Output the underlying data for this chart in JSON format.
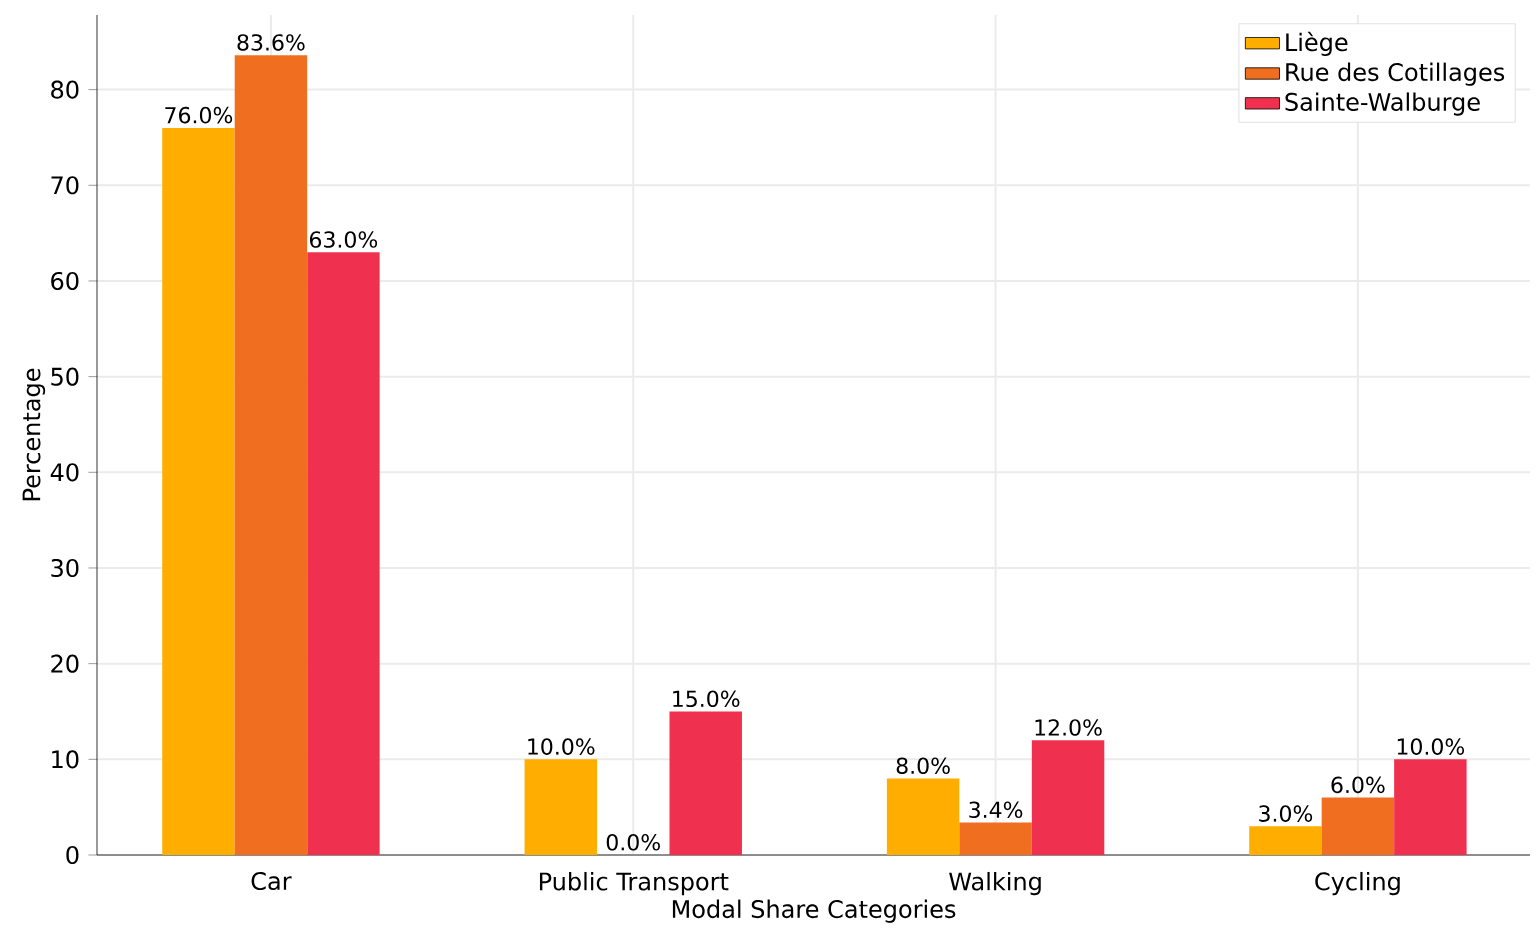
{
  "chart_data": {
    "type": "bar",
    "xlabel": "Modal Share Categories",
    "ylabel": "Percentage",
    "categories": [
      "Car",
      "Public Transport",
      "Walking",
      "Cycling"
    ],
    "series": [
      {
        "name": "Liège",
        "color": "#ffae00",
        "values": [
          76.0,
          10.0,
          8.0,
          3.0
        ],
        "value_labels": [
          "76.0%",
          "10.0%",
          "8.0%",
          "3.0%"
        ]
      },
      {
        "name": "Rue des Cotillages",
        "color": "#f06e20",
        "values": [
          83.6,
          0.0,
          3.4,
          6.0
        ],
        "value_labels": [
          "83.6%",
          "0.0%",
          "3.4%",
          "6.0%"
        ]
      },
      {
        "name": "Sainte-Walburge",
        "color": "#f0304f",
        "values": [
          63.0,
          15.0,
          12.0,
          10.0
        ],
        "value_labels": [
          "63.0%",
          "15.0%",
          "12.0%",
          "10.0%"
        ]
      }
    ],
    "ylim": [
      0,
      87.8
    ],
    "yticks": [
      0,
      10,
      20,
      30,
      40,
      50,
      60,
      70,
      80
    ],
    "grid": true,
    "legend": "top right"
  }
}
